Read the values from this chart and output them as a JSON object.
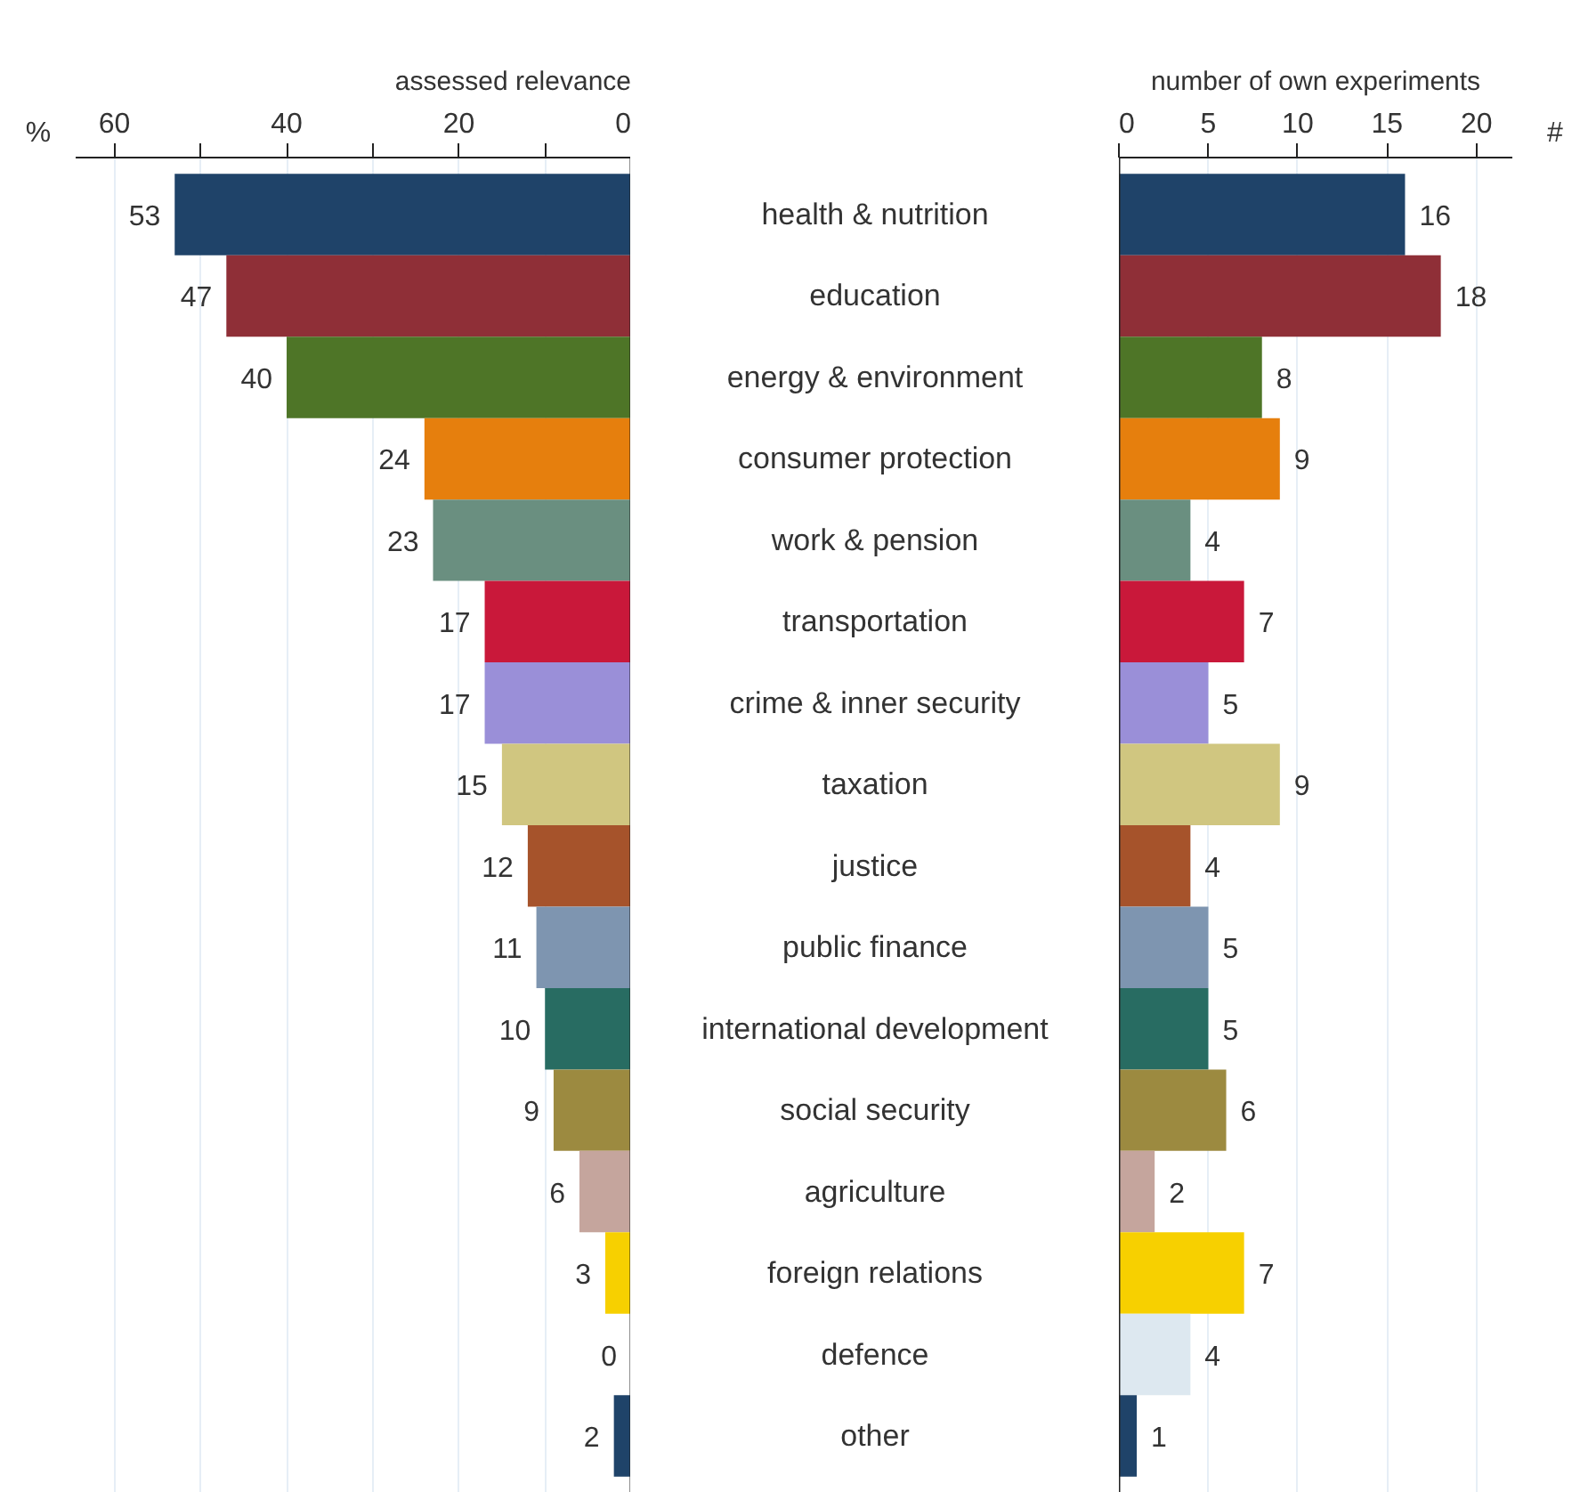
{
  "chart_data": [
    {
      "type": "bar",
      "orientation": "horizontal",
      "title": "assessed relevance",
      "xlabel": "%",
      "categories": [
        "health & nutrition",
        "education",
        "energy & environment",
        "consumer protection",
        "work & pension",
        "transportation",
        "crime & inner security",
        "taxation",
        "justice",
        "public finance",
        "international development",
        "social security",
        "agriculture",
        "foreign relations",
        "defence",
        "other"
      ],
      "values": [
        53,
        47,
        40,
        24,
        23,
        17,
        17,
        15,
        12,
        11,
        10,
        9,
        6,
        3,
        0,
        2
      ],
      "colors": [
        "#1f4369",
        "#8f2f37",
        "#4e7527",
        "#e67f0d",
        "#6a8f80",
        "#c9183a",
        "#9a8fd8",
        "#d0c680",
        "#a6532b",
        "#7e95b0",
        "#286c62",
        "#9c8a40",
        "#c5a59d",
        "#f7d000",
        "#dde8f0",
        "#1f4369"
      ],
      "xlim": [
        64.5,
        0
      ],
      "xticks": [
        0,
        {
          "value": 10,
          "label": null
        },
        20,
        {
          "value": 30,
          "label": null
        },
        40,
        {
          "value": 50,
          "label": null
        },
        60
      ],
      "grid": "x",
      "data_labels": true
    },
    {
      "type": "bar",
      "orientation": "horizontal",
      "title": "number of own experiments",
      "xlabel": "#",
      "categories": [
        null,
        null,
        null,
        null,
        null,
        null,
        null,
        null,
        null,
        null,
        null,
        null,
        null,
        null,
        null,
        null
      ],
      "values": [
        16,
        18,
        8,
        9,
        4,
        7,
        5,
        9,
        4,
        5,
        5,
        6,
        2,
        7,
        4,
        1
      ],
      "colors": [
        "#1f4369",
        "#8f2f37",
        "#4e7527",
        "#e67f0d",
        "#6a8f80",
        "#c9183a",
        "#9a8fd8",
        "#d0c680",
        "#a6532b",
        "#7e95b0",
        "#286c62",
        "#9c8a40",
        "#c5a59d",
        "#f7d000",
        "#dde8f0",
        "#1f4369"
      ],
      "xlim": [
        0,
        22
      ],
      "xticks": [
        0,
        5,
        10,
        15,
        20
      ],
      "tick_labels": "x",
      "grid": "x",
      "data_labels": true
    }
  ]
}
